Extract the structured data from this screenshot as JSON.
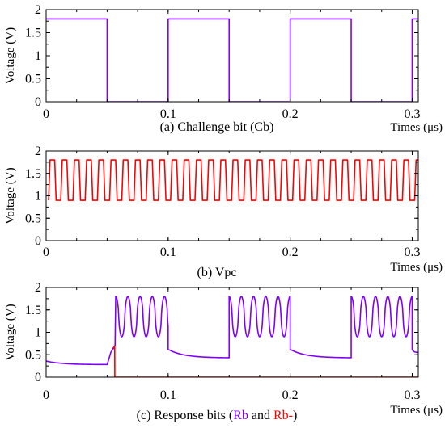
{
  "colors": {
    "purple": "#8000ff",
    "red": "#ff0000",
    "axis": "#000000"
  },
  "chart_data": [
    {
      "type": "line",
      "caption_parts": [
        {
          "text": "(a) Challenge bit (Cb)",
          "color": "#000000"
        }
      ],
      "xlabel": "Times (μs)",
      "ylabel": "Voltage (V)",
      "xlim": [
        0,
        0.305
      ],
      "ylim": [
        0,
        2
      ],
      "xticks": [
        0,
        0.1,
        0.2,
        0.3
      ],
      "xticklabels": [
        "0",
        "0.1",
        "0.2",
        "0.3"
      ],
      "yticks": [
        0,
        0.5,
        1,
        1.5,
        2
      ],
      "yticklabels": [
        "0",
        "0.5",
        "1",
        "1.5",
        "2"
      ],
      "grid": false,
      "series": [
        {
          "color": "#8000ff",
          "waveform": "square",
          "low": 0,
          "high": 1.8,
          "period": 0.1,
          "high_first": true,
          "x": [
            0,
            0.05,
            0.05,
            0.1,
            0.1,
            0.15,
            0.15,
            0.2,
            0.2,
            0.25,
            0.25,
            0.3,
            0.3,
            0.305
          ],
          "y": [
            1.8,
            1.8,
            0,
            0,
            1.8,
            1.8,
            0,
            0,
            1.8,
            1.8,
            0,
            0,
            1.8,
            1.8
          ]
        }
      ]
    },
    {
      "type": "line",
      "caption_parts": [
        {
          "text": "(b) Vpc",
          "color": "#000000"
        }
      ],
      "xlabel": "Times (μs)",
      "ylabel": "Voltage (V)",
      "xlim": [
        0,
        0.305
      ],
      "ylim": [
        0,
        2
      ],
      "xticks": [
        0,
        0.1,
        0.2,
        0.3
      ],
      "xticklabels": [
        "0",
        "0.1",
        "0.2",
        "0.3"
      ],
      "yticks": [
        0,
        0.5,
        1,
        1.5,
        2
      ],
      "yticklabels": [
        "0",
        "0.5",
        "1",
        "1.5",
        "2"
      ],
      "grid": false,
      "series": [
        {
          "color": "#ff0000",
          "waveform": "clock",
          "low": 0.9,
          "high": 1.8,
          "period": 0.01,
          "x_start": 0.002,
          "x_end": 0.305
        }
      ]
    },
    {
      "type": "line",
      "caption_parts": [
        {
          "text": "(c) Response bits (",
          "color": "#000000"
        },
        {
          "text": "Rb",
          "color": "#8000ff"
        },
        {
          "text": " and ",
          "color": "#000000"
        },
        {
          "text": "Rb-",
          "color": "#ff0000"
        },
        {
          "text": ")",
          "color": "#000000"
        }
      ],
      "xlabel": "Times (μs)",
      "ylabel": "Voltage (V)",
      "xlim": [
        0,
        0.305
      ],
      "ylim": [
        0,
        2
      ],
      "xticks": [
        0,
        0.1,
        0.2,
        0.3
      ],
      "xticklabels": [
        "0",
        "0.1",
        "0.2",
        "0.3"
      ],
      "yticks": [
        0,
        0.5,
        1,
        1.5,
        2
      ],
      "yticklabels": [
        "0",
        "0.5",
        "1",
        "1.5",
        "2"
      ],
      "grid": false,
      "series": [
        {
          "name": "Rb",
          "color": "#8000ff",
          "segments": [
            {
              "kind": "decay",
              "x0": 0.0,
              "x1": 0.05,
              "y0": 0.36,
              "y1": 0.28
            },
            {
              "kind": "spike",
              "x": [
                0.05,
                0.053,
                0.055,
                0.0565,
                0.057
              ],
              "y": [
                0.28,
                0.55,
                0.65,
                0.7,
                1.75
              ]
            },
            {
              "kind": "osc",
              "x0": 0.057,
              "x1": 0.1,
              "low": 0.9,
              "high": 1.8,
              "period": 0.01
            },
            {
              "kind": "decay",
              "x0": 0.1,
              "x1": 0.15,
              "y0": 0.62,
              "y1": 0.43
            },
            {
              "kind": "osc",
              "x0": 0.15,
              "x1": 0.2,
              "low": 0.9,
              "high": 1.8,
              "period": 0.01
            },
            {
              "kind": "decay",
              "x0": 0.2,
              "x1": 0.25,
              "y0": 0.62,
              "y1": 0.43
            },
            {
              "kind": "osc",
              "x0": 0.25,
              "x1": 0.3,
              "low": 0.9,
              "high": 1.8,
              "period": 0.01
            },
            {
              "kind": "decay",
              "x0": 0.3,
              "x1": 0.305,
              "y0": 0.62,
              "y1": 0.55
            }
          ]
        },
        {
          "name": "Rb-",
          "color": "#ff0000",
          "x": [
            0.0,
            0.05,
            0.0555,
            0.0562,
            0.0563,
            0.305
          ],
          "y": [
            null,
            null,
            0.62,
            0.7,
            0.0,
            0.0
          ]
        }
      ]
    }
  ]
}
